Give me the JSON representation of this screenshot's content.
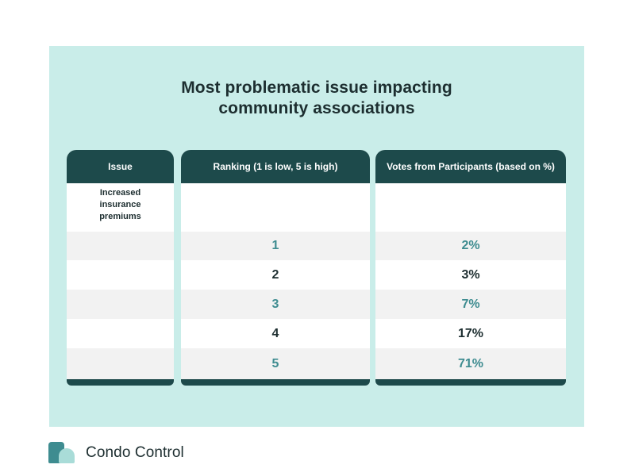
{
  "title": {
    "line1": "Most problematic issue impacting",
    "line2": "community associations"
  },
  "table": {
    "headers": {
      "issue": "Issue",
      "ranking": "Ranking (1 is low, 5 is high)",
      "votes": "Votes from Participants (based on %)"
    },
    "issue": "Increased insurance premiums",
    "rows": [
      {
        "rank": "1",
        "votes": "2%"
      },
      {
        "rank": "2",
        "votes": "3%"
      },
      {
        "rank": "3",
        "votes": "7%"
      },
      {
        "rank": "4",
        "votes": "17%"
      },
      {
        "rank": "5",
        "votes": "71%"
      }
    ]
  },
  "brand": {
    "name": "Condo Control"
  },
  "colors": {
    "panel": "#c9ede9",
    "header": "#1d4a4b",
    "teal_text": "#3e8c90",
    "dark_text": "#1d2e30"
  }
}
